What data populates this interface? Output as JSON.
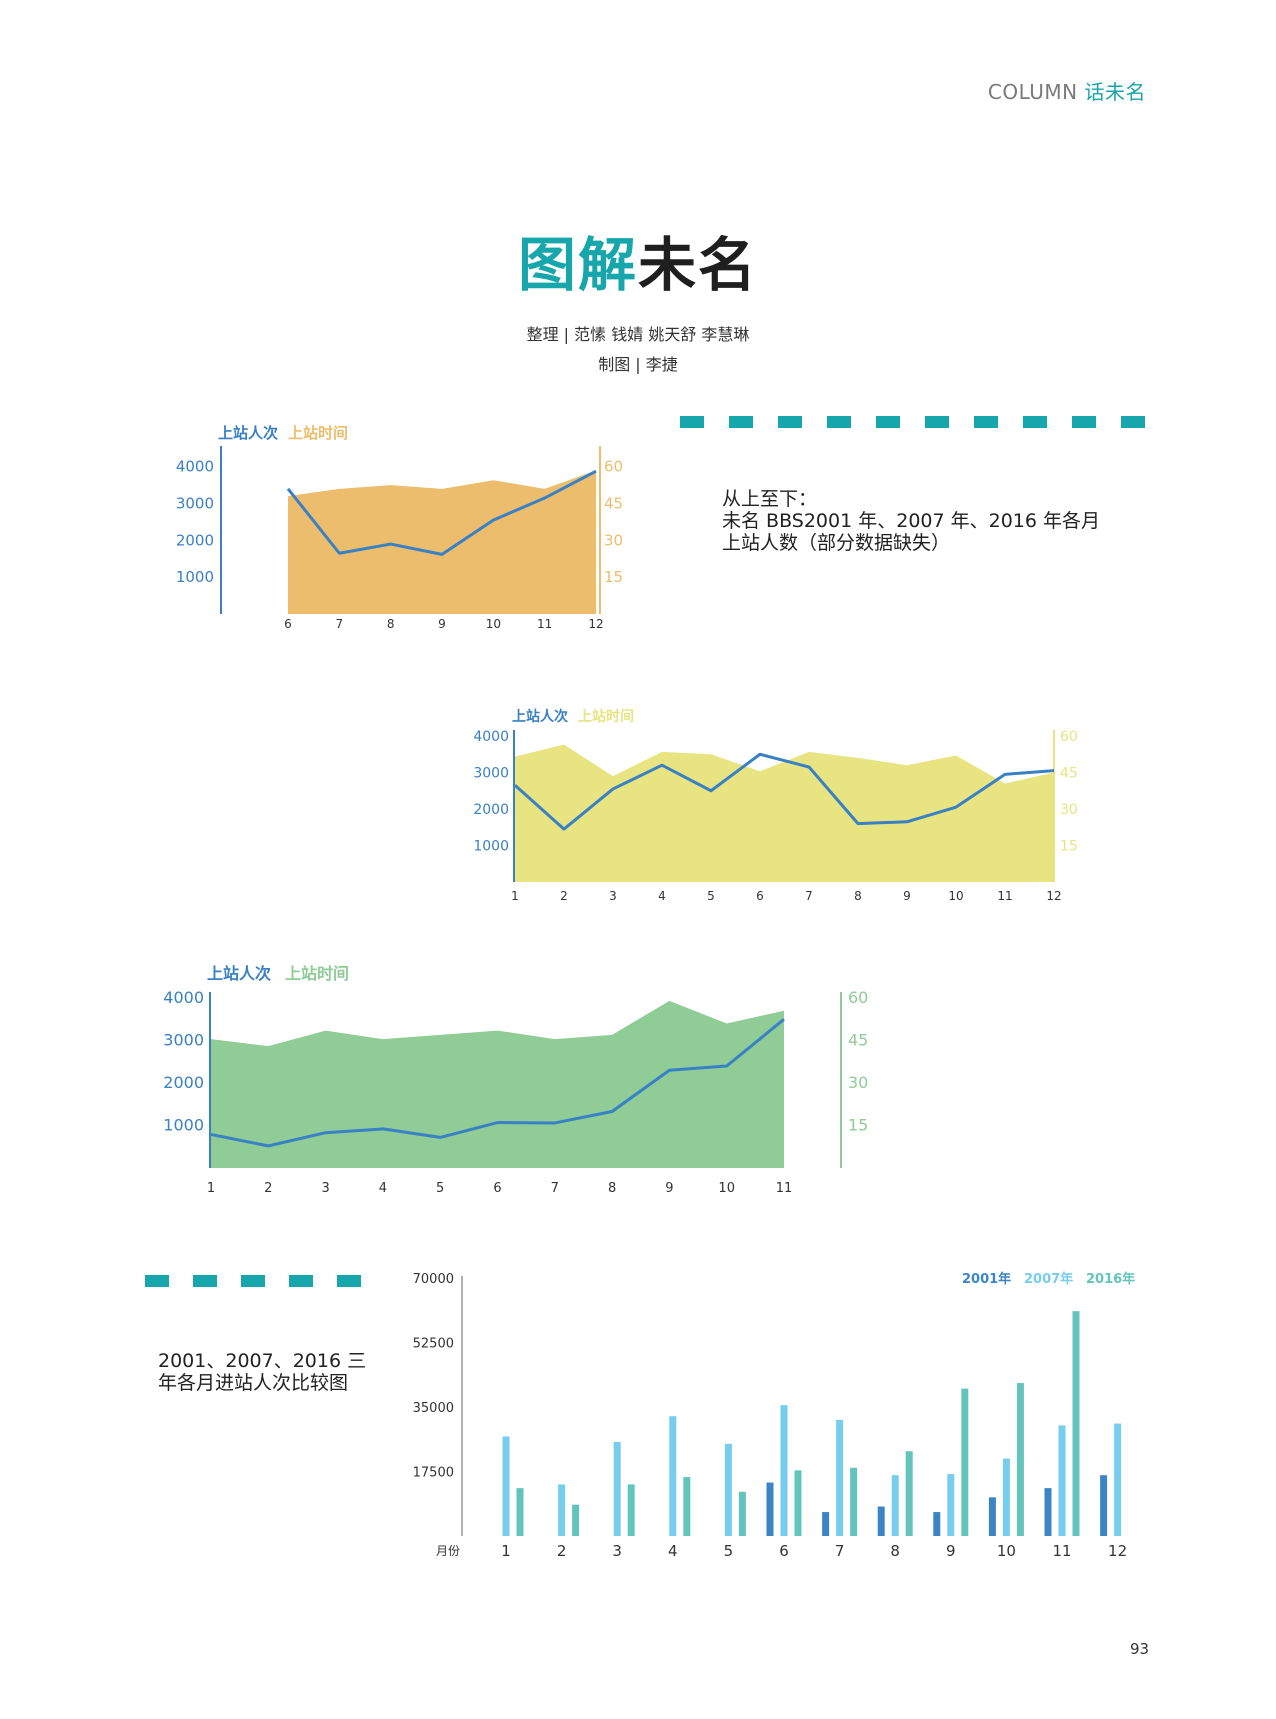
{
  "header": {
    "column_en": "COLUMN",
    "column_cn": "话未名"
  },
  "title": {
    "accent": "图解",
    "rest": "未名"
  },
  "credits": {
    "line1": "整理 | 范愫 钱婧 姚天舒 李慧琳",
    "line2": "制图 | 李捷"
  },
  "description1": {
    "line1": "从上至下：",
    "line2": "未名 BBS2001 年、2007 年、2016 年各月",
    "line3": "上站人数（部分数据缺失）"
  },
  "description2": {
    "line1": "2001、2007、2016 三",
    "line2": "年各月进站人次比较图"
  },
  "page_number": "93",
  "colors": {
    "teal": "#17a6ab",
    "line_blue": "#3a80c4",
    "area_orange": "#ecbd6d",
    "area_yellow": "#e8e482",
    "area_green": "#8fcc96",
    "bar_2001": "#3b85c6",
    "bar_2007": "#76cdee",
    "bar_2016": "#63c4bc"
  },
  "chart_data": [
    {
      "type": "line",
      "legend": {
        "line_label": "上站人次",
        "area_label": "上站时间"
      },
      "x": [
        "6",
        "7",
        "8",
        "9",
        "10",
        "11",
        "12"
      ],
      "left_axis": {
        "ticks": [
          "1000",
          "2000",
          "3000",
          "4000"
        ],
        "range": [
          0,
          4400
        ]
      },
      "right_axis": {
        "ticks": [
          "15",
          "30",
          "45",
          "60"
        ],
        "range": [
          0,
          66
        ]
      },
      "series": [
        {
          "name": "上站人次",
          "type": "line",
          "values": [
            3400,
            1650,
            1900,
            1620,
            2550,
            3150,
            3880
          ]
        },
        {
          "name": "上站时间",
          "type": "area",
          "values": [
            48,
            51,
            52.5,
            51,
            54.5,
            51,
            58.5
          ]
        }
      ]
    },
    {
      "type": "line",
      "legend": {
        "line_label": "上站人次",
        "area_label": "上站时间"
      },
      "x": [
        "1",
        "2",
        "3",
        "4",
        "5",
        "6",
        "7",
        "8",
        "9",
        "10",
        "11",
        "12"
      ],
      "left_axis": {
        "ticks": [
          "1000",
          "2000",
          "3000",
          "4000"
        ],
        "range": [
          0,
          4000
        ]
      },
      "right_axis": {
        "ticks": [
          "15",
          "30",
          "45",
          "60"
        ],
        "range": [
          0,
          60
        ]
      },
      "series": [
        {
          "name": "上站人次",
          "type": "line",
          "values": [
            2650,
            1450,
            2550,
            3200,
            2500,
            3500,
            3150,
            1600,
            1650,
            2050,
            2950,
            3050
          ]
        },
        {
          "name": "上站时间",
          "type": "area",
          "values": [
            51.5,
            56.5,
            43.5,
            53.5,
            52.5,
            45.5,
            53.5,
            51,
            48,
            52,
            40.5,
            45
          ]
        }
      ]
    },
    {
      "type": "line",
      "legend": {
        "line_label": "上站人次",
        "area_label": "上站时间"
      },
      "x": [
        "1",
        "2",
        "3",
        "4",
        "5",
        "6",
        "7",
        "8",
        "9",
        "10",
        "11"
      ],
      "left_axis": {
        "ticks": [
          "1000",
          "2000",
          "3000",
          "4000"
        ],
        "range": [
          0,
          4000
        ]
      },
      "right_axis": {
        "ticks": [
          "15",
          "30",
          "45",
          "60"
        ],
        "range": [
          0,
          60
        ]
      },
      "series": [
        {
          "name": "上站人次",
          "type": "line",
          "values": [
            790,
            520,
            830,
            920,
            720,
            1070,
            1060,
            1330,
            2300,
            2400,
            3500
          ]
        },
        {
          "name": "上站时间",
          "type": "area",
          "values": [
            45.5,
            43,
            48.5,
            45.5,
            47,
            48.5,
            45.5,
            47,
            59,
            51,
            55.5
          ]
        }
      ]
    },
    {
      "type": "bar",
      "xlabel": "月份",
      "categories": [
        "1",
        "2",
        "3",
        "4",
        "5",
        "6",
        "7",
        "8",
        "9",
        "10",
        "11",
        "12"
      ],
      "y_ticks": [
        "17500",
        "35000",
        "52500",
        "70000"
      ],
      "ylim": [
        0,
        70000
      ],
      "legend_position": "top-right",
      "series": [
        {
          "name": "2001年",
          "values": [
            null,
            null,
            null,
            null,
            null,
            14500,
            6500,
            8000,
            6500,
            10500,
            13000,
            16500
          ]
        },
        {
          "name": "2007年",
          "values": [
            27000,
            14000,
            25500,
            32500,
            25000,
            35500,
            31500,
            16500,
            16800,
            21000,
            30000,
            30500
          ]
        },
        {
          "name": "2016年",
          "values": [
            13000,
            8500,
            14000,
            16000,
            12000,
            17800,
            18500,
            23000,
            40000,
            41500,
            61000,
            null
          ]
        }
      ]
    }
  ]
}
